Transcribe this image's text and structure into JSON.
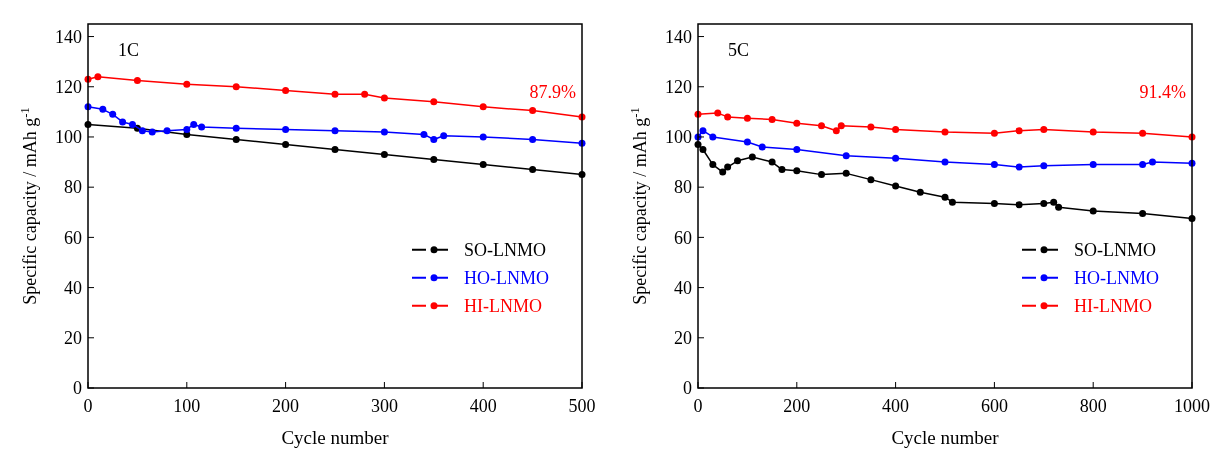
{
  "chart_data": [
    {
      "type": "line",
      "xlabel": "Cycle number",
      "ylabel": "Specific capacity / mAh g$^{-1}$",
      "xlim": [
        0,
        500
      ],
      "xticks": [
        0,
        100,
        200,
        300,
        400,
        500
      ],
      "ylim": [
        0,
        145
      ],
      "yticks": [
        0,
        20,
        40,
        60,
        80,
        100,
        120,
        140
      ],
      "marker": "circle",
      "line_style": "solid",
      "legend": "right",
      "grid": false,
      "annotations": [
        "1C",
        "87.9%"
      ],
      "series": [
        {
          "name": "SO-LNMO",
          "color": "#000000",
          "x": [
            0,
            50,
            100,
            150,
            200,
            250,
            300,
            350,
            400,
            450,
            500
          ],
          "values": [
            105,
            103.5,
            101,
            99,
            97,
            95,
            93,
            91,
            89,
            87,
            85
          ]
        },
        {
          "name": "HO-LNMO",
          "color": "#0000ff",
          "x": [
            0,
            15,
            25,
            35,
            45,
            55,
            65,
            80,
            100,
            107,
            115,
            150,
            200,
            250,
            300,
            340,
            350,
            360,
            400,
            450,
            500
          ],
          "values": [
            112,
            111,
            109,
            106,
            105,
            102.5,
            102,
            102.5,
            103,
            105,
            104,
            103.5,
            103,
            102.5,
            102,
            101,
            99,
            100.5,
            100,
            99,
            97.5
          ]
        },
        {
          "name": "HI-LNMO",
          "color": "#ff0000",
          "x": [
            0,
            10,
            50,
            100,
            150,
            200,
            250,
            280,
            300,
            350,
            400,
            450,
            500
          ],
          "values": [
            123,
            124,
            122.5,
            121,
            120,
            118.5,
            117,
            117,
            115.5,
            114,
            112,
            110.5,
            108
          ]
        }
      ]
    },
    {
      "type": "line",
      "xlabel": "Cycle number",
      "ylabel": "Specific capacity / mAh g$^{-1}$",
      "xlim": [
        0,
        1000
      ],
      "xticks": [
        0,
        200,
        400,
        600,
        800,
        1000
      ],
      "ylim": [
        0,
        145
      ],
      "yticks": [
        0,
        20,
        40,
        60,
        80,
        100,
        120,
        140
      ],
      "marker": "circle",
      "line_style": "solid",
      "legend": "right",
      "grid": false,
      "annotations": [
        "5C",
        "91.4%"
      ],
      "series": [
        {
          "name": "SO-LNMO",
          "color": "#000000",
          "x": [
            0,
            10,
            30,
            50,
            60,
            80,
            110,
            150,
            170,
            200,
            250,
            300,
            350,
            400,
            450,
            500,
            515,
            600,
            650,
            700,
            720,
            730,
            800,
            900,
            1000
          ],
          "values": [
            97,
            95,
            89,
            86,
            88,
            90.5,
            92,
            90,
            87,
            86.5,
            85,
            85.5,
            83,
            80.5,
            78,
            76,
            74,
            73.5,
            73,
            73.5,
            74,
            72,
            70.5,
            69.5,
            67.5
          ]
        },
        {
          "name": "HO-LNMO",
          "color": "#0000ff",
          "x": [
            0,
            10,
            30,
            100,
            130,
            200,
            300,
            400,
            500,
            600,
            650,
            700,
            800,
            900,
            920,
            1000
          ],
          "values": [
            100,
            102.5,
            100,
            98,
            96,
            95,
            92.5,
            91.5,
            90,
            89,
            88,
            88.5,
            89,
            89,
            90,
            89.5
          ]
        },
        {
          "name": "HI-LNMO",
          "color": "#ff0000",
          "x": [
            0,
            40,
            60,
            100,
            150,
            200,
            250,
            280,
            290,
            350,
            400,
            500,
            600,
            650,
            700,
            800,
            900,
            1000
          ],
          "values": [
            109,
            109.5,
            108,
            107.5,
            107,
            105.5,
            104.5,
            102.5,
            104.5,
            104,
            103,
            102,
            101.5,
            102.5,
            103,
            102,
            101.5,
            100
          ]
        }
      ]
    }
  ]
}
